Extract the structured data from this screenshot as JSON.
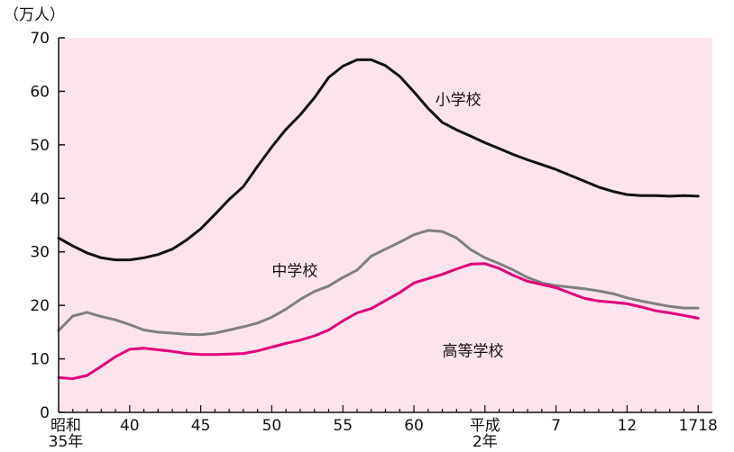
{
  "chart_data": {
    "type": "line",
    "unit": "（万人）",
    "x_labels": [
      {
        "x": 35,
        "lines": [
          "昭和",
          "35年"
        ]
      },
      {
        "x": 40,
        "lines": [
          "40"
        ]
      },
      {
        "x": 45,
        "lines": [
          "45"
        ]
      },
      {
        "x": 50,
        "lines": [
          "50"
        ]
      },
      {
        "x": 55,
        "lines": [
          "55"
        ]
      },
      {
        "x": 60,
        "lines": [
          "60"
        ]
      },
      {
        "x": 65,
        "lines": [
          "平成",
          "2年"
        ]
      },
      {
        "x": 70,
        "lines": [
          "7"
        ]
      },
      {
        "x": 75,
        "lines": [
          "12"
        ]
      },
      {
        "x": 80,
        "lines": [
          "1718"
        ]
      }
    ],
    "xlim": [
      35,
      81
    ],
    "ylim": [
      0,
      70
    ],
    "y_ticks": [
      0,
      10,
      20,
      30,
      40,
      50,
      60,
      70
    ],
    "x": [
      35,
      36,
      37,
      38,
      39,
      40,
      41,
      42,
      43,
      44,
      45,
      46,
      47,
      48,
      49,
      50,
      51,
      52,
      53,
      54,
      55,
      56,
      57,
      58,
      59,
      60,
      61,
      62,
      63,
      64,
      65,
      66,
      67,
      68,
      69,
      70,
      71,
      72,
      73,
      74,
      75,
      76,
      77,
      78,
      79,
      80
    ],
    "series": [
      {
        "name": "小学校",
        "color": "#111111",
        "values": [
          32.6,
          31.1,
          29.8,
          28.9,
          28.5,
          28.5,
          28.9,
          29.5,
          30.5,
          32.2,
          34.3,
          37.0,
          39.8,
          42.2,
          46.0,
          49.6,
          52.9,
          55.6,
          58.8,
          62.6,
          64.7,
          65.9,
          65.9,
          64.8,
          62.8,
          59.9,
          56.8,
          54.2,
          52.8,
          51.6,
          50.4,
          49.3,
          48.2,
          47.2,
          46.3,
          45.4,
          44.3,
          43.2,
          42.1,
          41.3,
          40.7,
          40.5,
          40.5,
          40.4,
          40.5,
          40.4
        ]
      },
      {
        "name": "中学校",
        "color": "#808080",
        "values": [
          15.3,
          18.0,
          18.7,
          17.9,
          17.3,
          16.4,
          15.4,
          15.0,
          14.8,
          14.6,
          14.5,
          14.8,
          15.4,
          16.0,
          16.7,
          17.8,
          19.3,
          21.1,
          22.6,
          23.6,
          25.2,
          26.6,
          29.2,
          30.5,
          31.8,
          33.2,
          34.0,
          33.8,
          32.6,
          30.4,
          28.9,
          27.8,
          26.6,
          25.2,
          24.2,
          23.7,
          23.4,
          23.1,
          22.7,
          22.2,
          21.4,
          20.8,
          20.3,
          19.8,
          19.5,
          19.5
        ]
      },
      {
        "name": "高等学校",
        "color": "#e0007a",
        "values": [
          6.5,
          6.3,
          6.9,
          8.6,
          10.4,
          11.8,
          12.0,
          11.7,
          11.4,
          11.0,
          10.8,
          10.8,
          10.9,
          11.0,
          11.5,
          12.2,
          12.9,
          13.5,
          14.3,
          15.4,
          17.1,
          18.6,
          19.4,
          20.9,
          22.4,
          24.2,
          25.0,
          25.8,
          26.8,
          27.7,
          27.8,
          26.9,
          25.6,
          24.5,
          23.9,
          23.3,
          22.3,
          21.3,
          20.8,
          20.6,
          20.3,
          19.7,
          19.0,
          18.6,
          18.1,
          17.6
        ]
      }
    ],
    "series_label_pos": [
      {
        "x": 61.5,
        "y": 57.5
      },
      {
        "x": 50.0,
        "y": 25.5
      },
      {
        "x": 62.0,
        "y": 10.5
      }
    ],
    "plot_background": "#fce4ee"
  }
}
